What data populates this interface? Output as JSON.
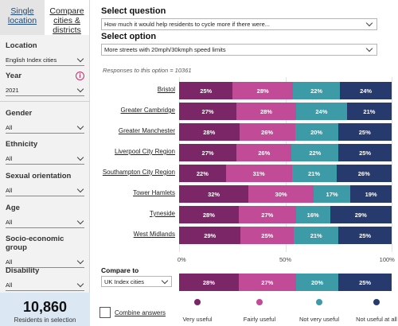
{
  "sidebar": {
    "tabs": [
      {
        "label_1": "Single",
        "label_2": "location"
      },
      {
        "label_1": "Compare",
        "label_2": "cities &",
        "label_3": "districts"
      }
    ],
    "filters": [
      {
        "label": "Location",
        "value": "English Index cities"
      },
      {
        "label": "Year",
        "value": "2021",
        "info_icon": "info-icon"
      },
      {
        "label": "Gender",
        "value": "All"
      },
      {
        "label": "Ethnicity",
        "value": "All"
      },
      {
        "label": "Sexual orientation",
        "value": "All"
      },
      {
        "label": "Age",
        "value": "All"
      },
      {
        "label": "Socio-economic group",
        "value": "All"
      },
      {
        "label": "Disability",
        "value": "All"
      }
    ],
    "residents": {
      "count": "10,860",
      "label": "Residents in selection"
    }
  },
  "main": {
    "question_title": "Select question",
    "question_value": "How much it would help residents to cycle more if there were...",
    "option_title": "Select option",
    "option_value": "More streets with 20mph/30kmph speed limits",
    "responses_text": "Responses to this option = 10361",
    "compare_label": "Compare to",
    "compare_value": "UK Index cities",
    "combine_label": "Combine answers"
  },
  "chart_data": {
    "type": "bar",
    "orientation": "horizontal-stacked-100",
    "categories": [
      "Bristol",
      "Greater Cambridge",
      "Greater Manchester",
      "Liverpool City Region",
      "Southampton City Region",
      "Tower Hamlets",
      "Tyneside",
      "West Midlands"
    ],
    "series": [
      {
        "name": "Very useful",
        "color": "#7b2667",
        "values": [
          25,
          27,
          28,
          27,
          22,
          32,
          28,
          29
        ]
      },
      {
        "name": "Fairly useful",
        "color": "#c24b98",
        "values": [
          28,
          28,
          26,
          26,
          31,
          30,
          27,
          25
        ]
      },
      {
        "name": "Not very useful",
        "color": "#3c9ba7",
        "values": [
          22,
          24,
          20,
          22,
          21,
          17,
          16,
          21
        ]
      },
      {
        "name": "Not useful at all",
        "color": "#273a6d",
        "values": [
          24,
          21,
          25,
          25,
          26,
          19,
          29,
          25
        ]
      }
    ],
    "comparison": {
      "category": "UK Index cities",
      "values": [
        28,
        27,
        20,
        25
      ]
    },
    "xticks": [
      "0%",
      "50%",
      "100%"
    ],
    "xlim": [
      0,
      100
    ]
  }
}
